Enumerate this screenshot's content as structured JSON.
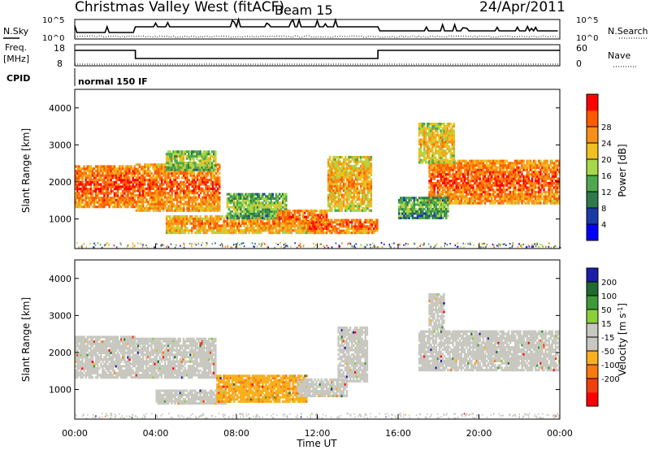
{
  "header": {
    "station": "Christmas Valley West (fitACF)",
    "beam": "Beam 15",
    "date": "24/Apr/2011"
  },
  "strip": {
    "nsky_label": "N.Sky",
    "nsearch_label": "N.Search",
    "freq_label": "Freq.",
    "freq_unit": "[MHz]",
    "nave_label": "Nave",
    "cpid_label": "CPID",
    "cpid_value": "normal 150 IF",
    "left_ticks_top": [
      "10^5",
      "10^0"
    ],
    "right_ticks_top": [
      "10^5",
      "10^0"
    ],
    "left_ticks_freq": [
      "18",
      "8"
    ],
    "right_ticks_nave": [
      "60",
      "0"
    ]
  },
  "colors": {
    "power_scale": [
      "#0000ff",
      "#1a3aa8",
      "#2f7a4a",
      "#4ea84e",
      "#a6d84a",
      "#f0c020",
      "#f89018",
      "#ff5a00",
      "#ff0000"
    ],
    "velocity_scale": [
      "#1c1ca8",
      "#1f6a2e",
      "#3c9a3a",
      "#8ad03a",
      "#c8c8c0",
      "#c8c8c0",
      "#f8b020",
      "#f87a10",
      "#f04010",
      "#ff0000"
    ]
  },
  "chart_data": [
    {
      "type": "heatmap",
      "name": "power",
      "ylabel": "Slant Range [km]",
      "colorbar_label": "Power [dB]",
      "colorbar_ticks": [
        4,
        8,
        12,
        16,
        20,
        24,
        28
      ],
      "yticks": [
        1000,
        2000,
        3000,
        4000
      ],
      "ylim": [
        200,
        4500
      ],
      "xlim_hours": [
        0,
        24
      ],
      "bands": [
        {
          "t0": 0.0,
          "t1": 3.0,
          "r0": 1300,
          "r1": 2450,
          "level": 0.92
        },
        {
          "t0": 3.0,
          "t1": 7.2,
          "r0": 1200,
          "r1": 2500,
          "level": 0.88
        },
        {
          "t0": 4.5,
          "t1": 7.0,
          "r0": 2300,
          "r1": 2850,
          "level": 0.55
        },
        {
          "t0": 4.5,
          "t1": 12.0,
          "r0": 600,
          "r1": 1100,
          "level": 0.8
        },
        {
          "t0": 7.5,
          "t1": 10.5,
          "r0": 1000,
          "r1": 1700,
          "level": 0.5
        },
        {
          "t0": 10.0,
          "t1": 12.5,
          "r0": 800,
          "r1": 1250,
          "level": 0.88
        },
        {
          "t0": 11.5,
          "t1": 15.0,
          "r0": 600,
          "r1": 1000,
          "level": 0.9
        },
        {
          "t0": 12.5,
          "t1": 14.7,
          "r0": 1200,
          "r1": 2700,
          "level": 0.75
        },
        {
          "t0": 17.5,
          "t1": 24.0,
          "r0": 1400,
          "r1": 2600,
          "level": 0.9
        },
        {
          "t0": 16.0,
          "t1": 18.5,
          "r0": 1000,
          "r1": 1600,
          "level": 0.45
        },
        {
          "t0": 17.0,
          "t1": 18.8,
          "r0": 2500,
          "r1": 3600,
          "level": 0.7
        }
      ]
    },
    {
      "type": "heatmap",
      "name": "velocity",
      "ylabel": "Slant Range [km]",
      "xlabel": "Time UT",
      "colorbar_label": "Velocity [m s^-1]",
      "colorbar_ticks": [
        200,
        100,
        50,
        15,
        -15,
        -50,
        -100,
        -200
      ],
      "yticks": [
        1000,
        2000,
        3000,
        4000
      ],
      "ylim": [
        200,
        4500
      ],
      "xticks": [
        "00:00",
        "04:00",
        "08:00",
        "12:00",
        "16:00",
        "20:00",
        "00:00"
      ],
      "xlim_hours": [
        0,
        24
      ],
      "bands": [
        {
          "t0": 0.0,
          "t1": 3.0,
          "r0": 1300,
          "r1": 2450,
          "level": 0.0
        },
        {
          "t0": 3.0,
          "t1": 7.0,
          "r0": 1300,
          "r1": 2400,
          "level": 0.0
        },
        {
          "t0": 4.0,
          "t1": 7.5,
          "r0": 600,
          "r1": 1000,
          "level": 0.0
        },
        {
          "t0": 7.0,
          "t1": 11.5,
          "r0": 650,
          "r1": 1400,
          "level": -50
        },
        {
          "t0": 11.0,
          "t1": 13.5,
          "r0": 800,
          "r1": 1300,
          "level": -15
        },
        {
          "t0": 13.0,
          "t1": 14.5,
          "r0": 1200,
          "r1": 2700,
          "level": 0.0
        },
        {
          "t0": 17.0,
          "t1": 24.0,
          "r0": 1500,
          "r1": 2600,
          "level": 0.0
        },
        {
          "t0": 17.5,
          "t1": 18.3,
          "r0": 2600,
          "r1": 3600,
          "level": 0.0
        }
      ]
    }
  ]
}
